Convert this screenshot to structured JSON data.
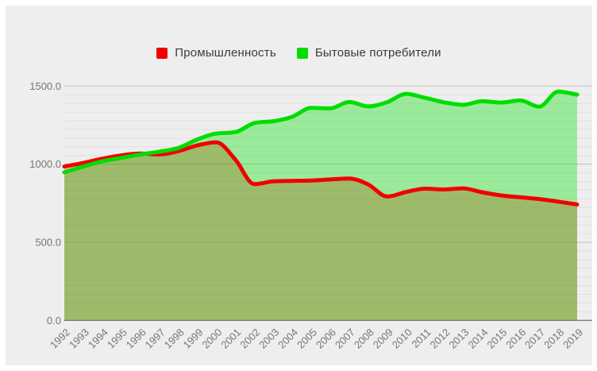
{
  "panel": {
    "background": "#eeeeee",
    "page_background": "#ffffff"
  },
  "grid": {
    "minor_color": "#e0e0e0",
    "major_color": "#c3c3c3",
    "baseline_color": "#7d7d7d"
  },
  "axis": {
    "label_color": "#757575"
  },
  "chart_data": {
    "type": "area",
    "title": "",
    "xlabel": "",
    "ylabel": "",
    "categories": [
      "1992",
      "1993",
      "1994",
      "1995",
      "1996",
      "1997",
      "1998",
      "1999",
      "2000",
      "2001",
      "2002",
      "2003",
      "2004",
      "2005",
      "2006",
      "2007",
      "2008",
      "2009",
      "2010",
      "2011",
      "2012",
      "2013",
      "2014",
      "2015",
      "2016",
      "2017",
      "2018",
      "2019"
    ],
    "series": [
      {
        "name": "Промышленность",
        "color": "#f10000",
        "fill": "rgba(255,0,0,0.30)",
        "values": [
          985,
          1008,
          1035,
          1056,
          1068,
          1062,
          1083,
          1120,
          1140,
          1030,
          872,
          890,
          893,
          895,
          902,
          908,
          870,
          793,
          822,
          843,
          838,
          845,
          820,
          800,
          788,
          777,
          760,
          742
        ]
      },
      {
        "name": "Бытовые потребители",
        "color": "#00dd00",
        "fill": "rgba(0,225,0,0.35)",
        "values": [
          948,
          985,
          1018,
          1040,
          1062,
          1080,
          1104,
          1158,
          1196,
          1205,
          1263,
          1275,
          1303,
          1360,
          1357,
          1398,
          1370,
          1397,
          1450,
          1424,
          1396,
          1380,
          1403,
          1394,
          1408,
          1368,
          1465,
          1445
        ]
      }
    ],
    "ylim": [
      0,
      1500
    ],
    "y_ticks": [
      0,
      500,
      1000,
      1500
    ],
    "y_tick_labels": [
      "0.0",
      "500.0",
      "1000.0",
      "1500.0"
    ],
    "minor_divisions": 9,
    "grid_on": true,
    "legend_position": "top",
    "curve": "smooth"
  }
}
